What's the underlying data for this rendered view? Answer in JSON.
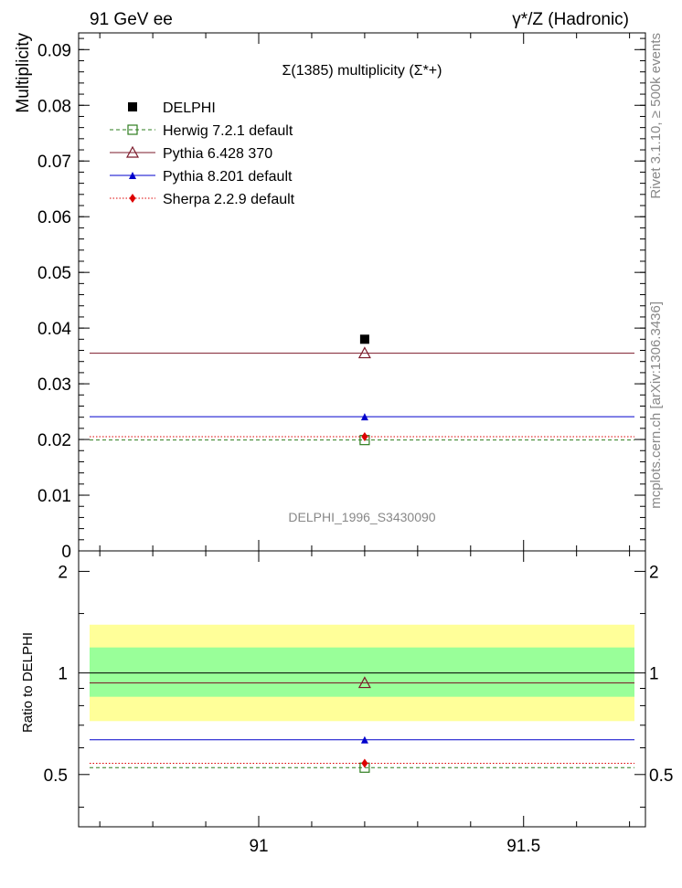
{
  "header": {
    "left": "91 GeV ee",
    "right": "γ*/Z (Hadronic)"
  },
  "side": {
    "rivet": "Rivet 3.1.10, ≥ 500k events",
    "mcplots": "mcplots.cern.ch [arXiv:1306.3436]"
  },
  "chart_data": [
    {
      "type": "scatter",
      "title": "Σ(1385) multiplicity (Σ*+)",
      "watermark": "DELPHI_1996_S3430090",
      "ylabel": "Multiplicity",
      "xlim": [
        90.66,
        91.73
      ],
      "ylim": [
        0,
        0.093
      ],
      "yticks": [
        "0",
        "0.01",
        "0.02",
        "0.03",
        "0.04",
        "0.05",
        "0.06",
        "0.07",
        "0.08",
        "0.09"
      ],
      "legend_position": "top-left",
      "series": [
        {
          "name": "DELPHI",
          "x": 91.2,
          "y": 0.038,
          "color": "#000000",
          "marker": "filled-square"
        },
        {
          "name": "Herwig 7.2.1 default",
          "x": 91.2,
          "y": 0.0199,
          "color": "#2e7d1e",
          "marker": "open-square",
          "line": "dashed",
          "x_range": [
            90.66,
            91.73
          ]
        },
        {
          "name": "Pythia 6.428 370",
          "x": 91.2,
          "y": 0.0355,
          "color": "#7b1a2a",
          "marker": "open-triangle",
          "line": "solid",
          "x_range": [
            90.66,
            91.73
          ]
        },
        {
          "name": "Pythia 8.201 default",
          "x": 91.2,
          "y": 0.0241,
          "color": "#0000cc",
          "marker": "filled-triangle",
          "line": "solid",
          "x_range": [
            90.66,
            91.73
          ]
        },
        {
          "name": "Sherpa 2.2.9 default",
          "x": 91.2,
          "y": 0.0205,
          "color": "#dd0000",
          "marker": "filled-diamond",
          "line": "dotted",
          "x_range": [
            90.66,
            91.73
          ]
        }
      ]
    },
    {
      "type": "scatter",
      "ylabel": "Ratio to DELPHI",
      "xlim": [
        90.66,
        91.73
      ],
      "ylim": [
        0.35,
        2.3
      ],
      "xticks": [
        "91",
        "91.5"
      ],
      "yticks": [
        "0.5",
        "1",
        "2"
      ],
      "bands": [
        {
          "low": 0.72,
          "high": 1.39,
          "color": "#ffff99"
        },
        {
          "low": 0.85,
          "high": 1.19,
          "color": "#99ff99"
        }
      ],
      "series": [
        {
          "name": "DELPHI",
          "y": 1.0,
          "color": "#000000"
        },
        {
          "name": "Herwig 7.2.1 default",
          "y": 0.524,
          "color": "#2e7d1e",
          "marker": "open-square",
          "line": "dashed"
        },
        {
          "name": "Pythia 6.428 370",
          "y": 0.934,
          "color": "#7b1a2a",
          "marker": "open-triangle",
          "line": "solid"
        },
        {
          "name": "Pythia 8.201 default",
          "y": 0.634,
          "color": "#0000cc",
          "marker": "filled-triangle",
          "line": "solid"
        },
        {
          "name": "Sherpa 2.2.9 default",
          "y": 0.54,
          "color": "#dd0000",
          "marker": "filled-diamond",
          "line": "dotted"
        }
      ]
    }
  ]
}
